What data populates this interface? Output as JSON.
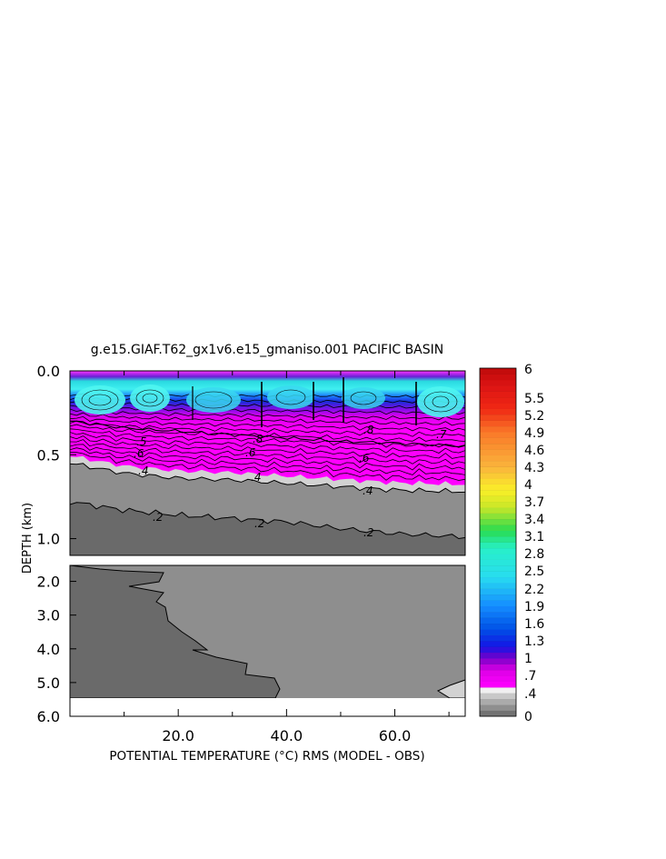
{
  "chart_data": {
    "type": "heatmap",
    "title": "g.e15.GIAF.T62_gx1v6.e15_gmaniso.001 PACIFIC BASIN",
    "xlabel": "POTENTIAL TEMPERATURE (°C) RMS (MODEL - OBS)",
    "ylabel": "DEPTH (km)",
    "xlim": [
      0,
      73
    ],
    "x_ticks": [
      {
        "value": 20,
        "label": "20.0"
      },
      {
        "value": 40,
        "label": "40.0"
      },
      {
        "value": 60,
        "label": "60.0"
      }
    ],
    "upper_panel": {
      "ylim": [
        0.0,
        1.1
      ],
      "y_ticks": [
        {
          "value": 0.0,
          "label": "0.0"
        },
        {
          "value": 0.5,
          "label": "0.5"
        },
        {
          "value": 1.0,
          "label": "1.0"
        }
      ]
    },
    "lower_panel": {
      "ylim": [
        1.5,
        6.0
      ],
      "y_ticks": [
        {
          "value": 2.0,
          "label": "2.0"
        },
        {
          "value": 3.0,
          "label": "3.0"
        },
        {
          "value": 4.0,
          "label": "4.0"
        },
        {
          "value": 5.0,
          "label": "5.0"
        },
        {
          "value": 6.0,
          "label": "6.0"
        }
      ]
    },
    "colorbar": {
      "labels": [
        "6",
        "5.5",
        "5.2",
        "4.9",
        "4.6",
        "4.3",
        "4",
        "3.7",
        "3.4",
        "3.1",
        "2.8",
        "2.5",
        "2.2",
        "1.9",
        "1.6",
        "1.3",
        "1",
        ".7",
        ".4",
        "0"
      ],
      "levels": [
        0,
        0.1,
        0.2,
        0.3,
        0.4,
        0.5,
        0.6,
        0.7,
        0.8,
        0.9,
        1.0,
        1.1,
        1.2,
        1.3,
        1.4,
        1.5,
        1.6,
        1.7,
        1.8,
        1.9,
        2.0,
        2.1,
        2.2,
        2.3,
        2.4,
        2.5,
        2.6,
        2.7,
        2.8,
        2.9,
        3.0,
        3.1,
        3.2,
        3.3,
        3.4,
        3.5,
        3.6,
        3.7,
        3.8,
        3.9,
        4.0,
        4.1,
        4.2,
        4.3,
        4.4,
        4.5,
        4.6,
        4.7,
        4.8,
        4.9,
        5.0,
        5.1,
        5.2,
        5.3,
        5.4,
        5.5,
        5.6,
        5.7,
        5.8,
        5.9,
        6.0
      ]
    },
    "contour_labels": [
      ".2",
      ".2",
      ".2",
      ".4",
      ".4",
      ".4",
      ".5",
      ".6",
      ".6",
      ".6",
      ".8",
      ".8",
      ".7"
    ],
    "depth_profiles": {
      "x": [
        0,
        10,
        20,
        30,
        40,
        50,
        60,
        73
      ],
      "contour_0_2_depth": [
        0.78,
        0.83,
        0.86,
        0.88,
        0.9,
        0.94,
        0.97,
        0.99
      ],
      "contour_0_4_depth": [
        0.55,
        0.61,
        0.64,
        0.65,
        0.67,
        0.69,
        0.71,
        0.72
      ],
      "contour_0_8_depth": [
        0.3,
        0.34,
        0.36,
        0.38,
        0.4,
        0.42,
        0.43,
        0.45
      ]
    },
    "colors": {
      "background": "#ffffff",
      "deep_gray": "#6a6a6a",
      "mid_gray": "#8e8e8e",
      "light_gray": "#d2d2d2",
      "magenta": "#ff00ff",
      "blue": "#1e3cff",
      "cyan": "#33e6e6"
    }
  }
}
